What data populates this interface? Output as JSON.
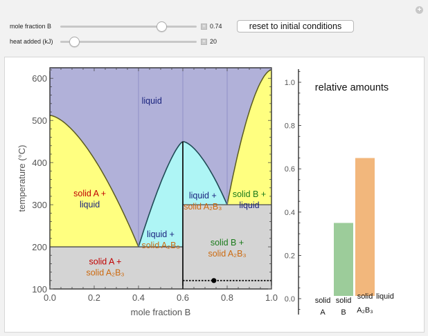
{
  "controls": {
    "mole_fraction": {
      "label": "mole fraction B",
      "value": 0.74,
      "display": "0.74",
      "min": 0,
      "max": 1
    },
    "heat_added": {
      "label": "heat added (kJ)",
      "value": 20,
      "display": "20",
      "min": 0,
      "max": 200
    },
    "reset_label": "reset to initial conditions"
  },
  "chart_data": [
    {
      "type": "area",
      "title": "",
      "xlabel": "mole fraction B",
      "ylabel": "temperature (°C)",
      "xlim": [
        0.0,
        1.0
      ],
      "ylim": [
        100,
        625
      ],
      "xticks": [
        "0.0",
        "0.2",
        "0.4",
        "0.6",
        "0.8",
        "1.0"
      ],
      "yticks": [
        "100",
        "200",
        "300",
        "400",
        "500",
        "600"
      ],
      "colors": {
        "liquid": "#b1b1d9",
        "solid_liquid": "#ffff80",
        "compound_liquid": "#aef5f5",
        "solid": "#d4d4d4"
      },
      "key_points": {
        "melting_A": [
          0.0,
          512
        ],
        "eutectic_1": [
          0.4,
          200
        ],
        "compound_A2B3": [
          0.6,
          450
        ],
        "eutectic_2": [
          0.8,
          300
        ],
        "melting_B": [
          1.0,
          620
        ]
      },
      "regions": [
        {
          "name": "liquid",
          "lines": [
            "liquid"
          ],
          "colors": [
            "#1a237e"
          ],
          "at": [
            0.46,
            540
          ]
        },
        {
          "name": "solid-A-liquid",
          "lines": [
            "solid A +",
            "liquid"
          ],
          "colors": [
            "#c00000",
            "#1a237e"
          ],
          "at": [
            0.18,
            320
          ]
        },
        {
          "name": "liquid-solid-A2B3-left",
          "lines": [
            "liquid +",
            "solid A₂B₃"
          ],
          "colors": [
            "#1a237e",
            "#cc6a10"
          ],
          "at": [
            0.5,
            223
          ]
        },
        {
          "name": "liquid-solid-A2B3-right",
          "lines": [
            "liquid +",
            "solid A₂B₃"
          ],
          "colors": [
            "#1a237e",
            "#cc6a10"
          ],
          "at": [
            0.69,
            315
          ]
        },
        {
          "name": "solid-B-liquid",
          "lines": [
            "solid B +",
            "liquid"
          ],
          "colors": [
            "#1a7a1a",
            "#1a237e"
          ],
          "at": [
            0.9,
            318
          ]
        },
        {
          "name": "solid-A-solid-A2B3",
          "lines": [
            "solid A +",
            "solid A₂B₃"
          ],
          "colors": [
            "#c00000",
            "#cc6a10"
          ],
          "at": [
            0.25,
            158
          ]
        },
        {
          "name": "solid-B-solid-A2B3",
          "lines": [
            "solid B +",
            "solid A₂B₃"
          ],
          "colors": [
            "#1a7a1a",
            "#cc6a10"
          ],
          "at": [
            0.8,
            203
          ]
        }
      ],
      "state_point": {
        "x": 0.74,
        "y": 120
      },
      "tie_line": {
        "x_from": 0.6,
        "x_to": 1.0,
        "y": 120
      }
    },
    {
      "type": "bar",
      "title": "relative amounts",
      "categories": [
        "solid A",
        "solid B",
        "solid A₂B₃",
        "liquid"
      ],
      "category_lines": [
        [
          "solid",
          "A"
        ],
        [
          "solid",
          "B"
        ],
        [
          "solid",
          "A₂B₃"
        ],
        [
          "liquid",
          ""
        ]
      ],
      "values": [
        0.0,
        0.35,
        0.65,
        0.0
      ],
      "colors": [
        "#e06666",
        "#9ccc9a",
        "#f2b77c",
        "#b1b1d9"
      ],
      "ylim": [
        0.0,
        1.0
      ],
      "yticks": [
        "0.0",
        "0.2",
        "0.4",
        "0.6",
        "0.8",
        "1.0"
      ]
    }
  ]
}
